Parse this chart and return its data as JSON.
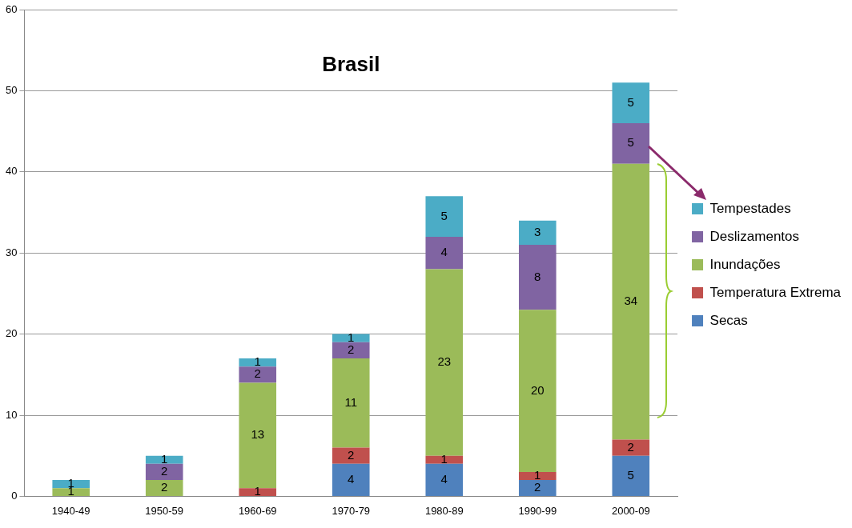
{
  "chart_data": {
    "type": "bar",
    "title": "Brasil",
    "categories": [
      "1940-49",
      "1950-59",
      "1960-69",
      "1970-79",
      "1980-89",
      "1990-99",
      "2000-09"
    ],
    "stacked": true,
    "series": [
      {
        "name": "Secas",
        "color": "#4f81bd",
        "values": [
          0,
          0,
          0,
          4,
          4,
          2,
          5
        ],
        "value_labels": [
          null,
          null,
          null,
          "4",
          "4",
          "2",
          "5"
        ]
      },
      {
        "name": "Temperatura Extrema",
        "color": "#c0504d",
        "values": [
          0,
          0,
          1,
          2,
          1,
          1,
          2
        ],
        "value_labels": [
          null,
          null,
          "1",
          "2",
          "1",
          "1",
          "2"
        ]
      },
      {
        "name": "Inundações",
        "color": "#9bbb59",
        "values": [
          1,
          2,
          13,
          11,
          23,
          20,
          34
        ],
        "value_labels": [
          "1",
          "2",
          "13",
          "11",
          "23",
          "20",
          "34"
        ]
      },
      {
        "name": "Deslizamentos",
        "color": "#8064a2",
        "values": [
          0,
          2,
          2,
          2,
          4,
          8,
          5
        ],
        "value_labels": [
          null,
          "2",
          "2",
          "2",
          "4",
          "8",
          "5"
        ]
      },
      {
        "name": "Tempestades",
        "color": "#4bacc6",
        "values": [
          1,
          1,
          1,
          1,
          5,
          3,
          5
        ],
        "value_labels": [
          "1",
          "1",
          "1",
          "1",
          "5",
          "3",
          "5"
        ]
      }
    ],
    "ylim": [
      0,
      60
    ],
    "yticks": [
      0,
      10,
      20,
      30,
      40,
      50,
      60
    ],
    "grid": "y",
    "legend": "right"
  }
}
